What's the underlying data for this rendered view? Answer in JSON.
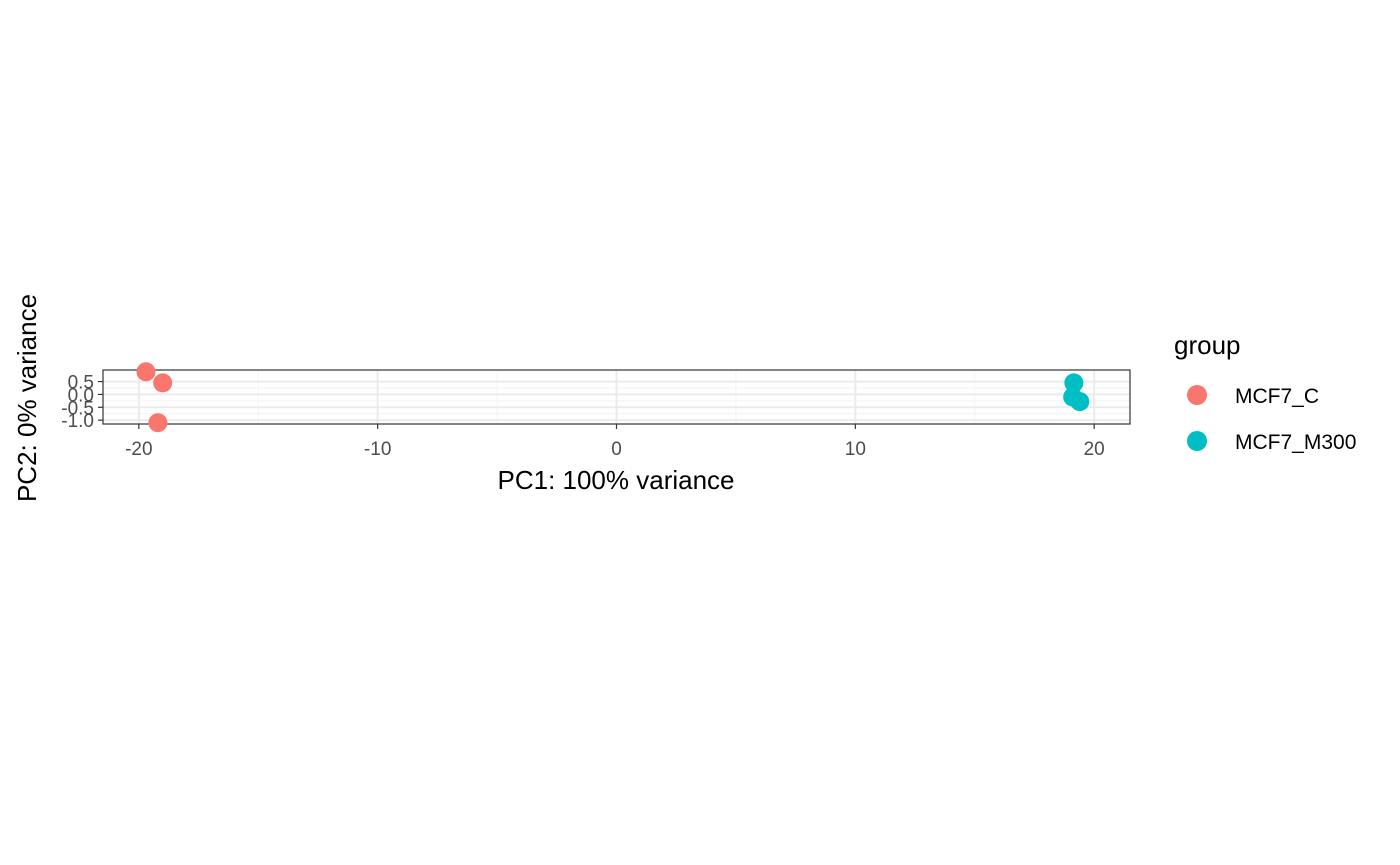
{
  "chart_data": {
    "type": "scatter",
    "title": "",
    "xlabel": "PC1: 100% variance",
    "ylabel": "PC2: 0% variance",
    "xlim": [
      -21.5,
      21.5
    ],
    "ylim": [
      -1.15,
      0.95
    ],
    "xticks": [
      -20,
      -10,
      0,
      10,
      20
    ],
    "xtick_labels": [
      "-20",
      "-10",
      "0",
      "10",
      "20"
    ],
    "yticks": [
      -1.0,
      -0.5,
      0.0,
      0.5
    ],
    "ytick_labels": [
      "-1.0",
      "-0.5",
      "0.0",
      "0.5"
    ],
    "grid": true,
    "legend": {
      "title": "group",
      "position": "right"
    },
    "series": [
      {
        "name": "MCF7_C",
        "color": "#F8766D",
        "points": [
          {
            "x": -19.7,
            "y": 0.88
          },
          {
            "x": -19.0,
            "y": 0.45
          },
          {
            "x": -19.2,
            "y": -1.1
          }
        ]
      },
      {
        "name": "MCF7_M300",
        "color": "#00BFC4",
        "points": [
          {
            "x": 19.15,
            "y": 0.45
          },
          {
            "x": 19.1,
            "y": -0.1
          },
          {
            "x": 19.4,
            "y": -0.28
          }
        ]
      }
    ]
  }
}
